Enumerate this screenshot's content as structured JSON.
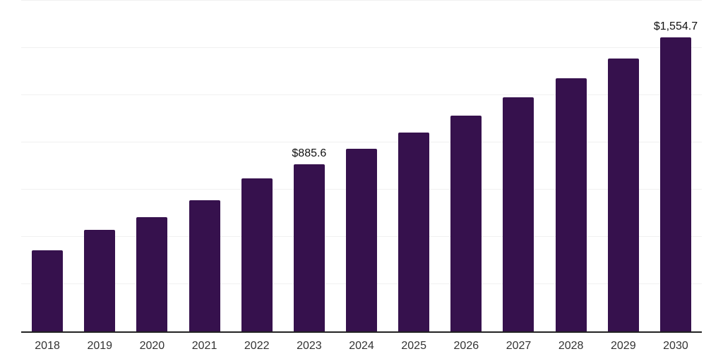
{
  "chart_data": {
    "type": "bar",
    "title": "",
    "xlabel": "",
    "ylabel": "",
    "categories": [
      "2018",
      "2019",
      "2020",
      "2021",
      "2022",
      "2023",
      "2024",
      "2025",
      "2026",
      "2027",
      "2028",
      "2029",
      "2030"
    ],
    "values": [
      429,
      539,
      604,
      693,
      809,
      885.6,
      967,
      1052,
      1143,
      1238,
      1340,
      1444,
      1554.7
    ],
    "data_labels": {
      "2023": "$885.6",
      "2030": "$1,554.7"
    },
    "ylim": [
      0,
      1750
    ],
    "gridline_interval": 250,
    "grid": true,
    "legend": false,
    "colors": {
      "bar": "#36114D",
      "gridline": "#f1f1f1",
      "axis": "#222222",
      "tick_label": "#333333",
      "value_label": "#111111",
      "background": "#ffffff"
    }
  }
}
